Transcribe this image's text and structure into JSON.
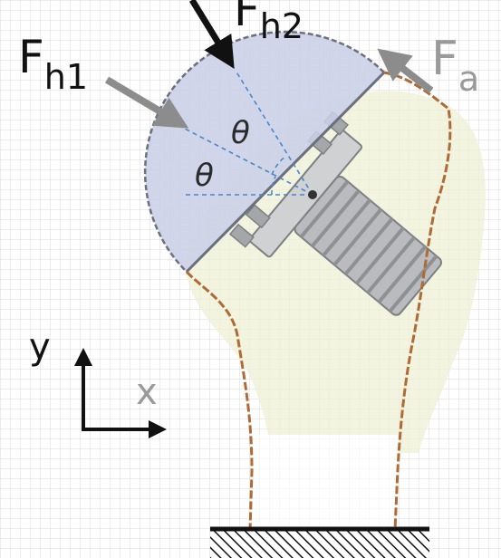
{
  "labels": {
    "fh1": {
      "main": "F",
      "sub": "h1"
    },
    "fh2": {
      "main": "F",
      "sub": "h2"
    },
    "fa": {
      "main": "F",
      "sub": "a"
    },
    "theta_upper": "θ",
    "theta_lower": "θ",
    "axis_y": "y",
    "axis_x": "x"
  },
  "colors": {
    "hemisphere_fill": "#c9cfe6",
    "hemisphere_stroke": "#6c6f7e",
    "humerus_fill": "#eef0d6",
    "outline": "#b06a34",
    "arrow": "#8c8c8c",
    "arrow_dark": "#111111",
    "dashed_line": "#4a86c8",
    "screw": "#b9bbbe",
    "grid": "#d8d8d8"
  },
  "icons": {
    "axes": "xy-axes-icon",
    "ground": "hatched-ground-icon",
    "screw": "screw-icon"
  }
}
